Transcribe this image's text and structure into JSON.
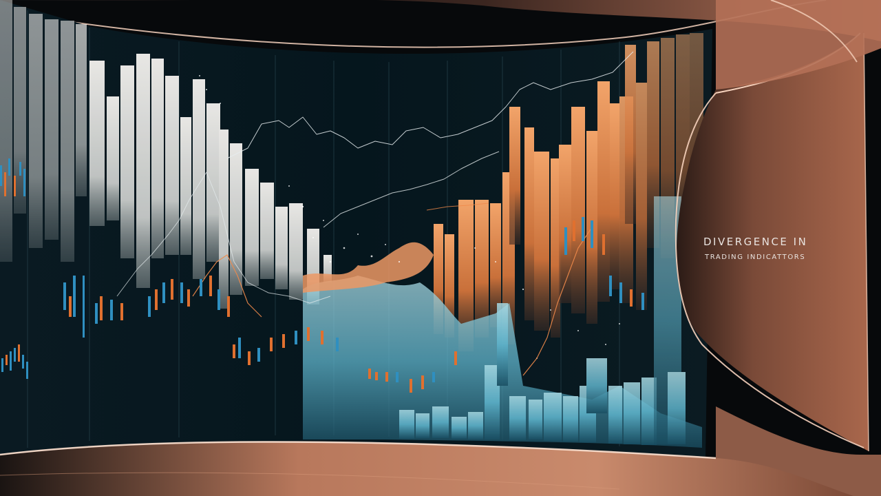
{
  "title": {
    "line1": "DIVERGENCE IN",
    "line2": "TRADING  INDICATTORS"
  },
  "palette": {
    "background": "#06090c",
    "copper": "#c9856a",
    "copper_light": "#f0c0a6",
    "white_bars": "#e8e6e2",
    "orange_bars": "#e08a4e",
    "teal_bars": "#5fb4cc",
    "candle_blue": "#2f8fc0",
    "candle_orange": "#e0702f"
  },
  "icons": {
    "left_wall": "curved-screen",
    "right_wall": "copper-panel"
  }
}
